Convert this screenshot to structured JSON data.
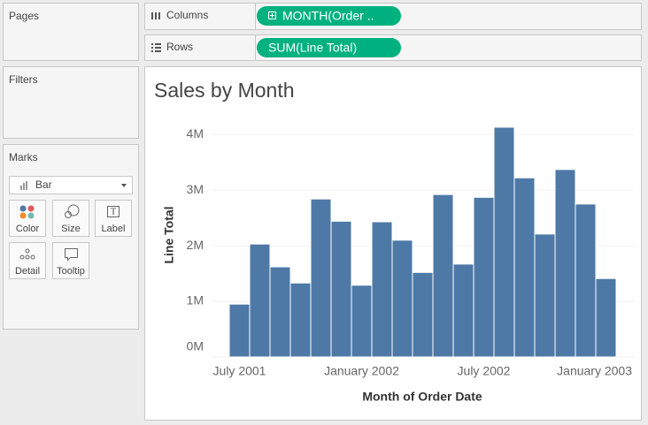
{
  "shelves": {
    "columns": {
      "label": "Columns",
      "pill": "MONTH(Order .."
    },
    "rows": {
      "label": "Rows",
      "pill": "SUM(Line Total)"
    }
  },
  "cards": {
    "pages": "Pages",
    "filters": "Filters",
    "marks": {
      "title": "Marks",
      "mark_type": "Bar",
      "buttons": [
        "Color",
        "Size",
        "Label",
        "Detail",
        "Tooltip"
      ]
    }
  },
  "chart_data": {
    "type": "bar",
    "title": "Sales by Month",
    "x_label": "Month of Order Date",
    "y_label": "Line Total",
    "categories": [
      "July 2001",
      null,
      null,
      null,
      null,
      null,
      "January 2002",
      null,
      null,
      null,
      null,
      null,
      "July 2002",
      null,
      null,
      null,
      null,
      null,
      "January 2003"
    ],
    "values": [
      0.95,
      2.03,
      1.62,
      1.33,
      2.84,
      2.44,
      1.29,
      2.43,
      2.1,
      1.52,
      2.92,
      1.67,
      2.87,
      4.13,
      3.22,
      2.21,
      3.37,
      2.75,
      1.41
    ],
    "color": "#4e79a7",
    "ylim": [
      0,
      4.4
    ],
    "yticks": [
      {
        "value": 0,
        "label": "0M"
      },
      {
        "value": 1,
        "label": "1M"
      },
      {
        "value": 2,
        "label": "2M"
      },
      {
        "value": 3,
        "label": "3M"
      },
      {
        "value": 4,
        "label": "4M"
      }
    ],
    "grid": true
  }
}
